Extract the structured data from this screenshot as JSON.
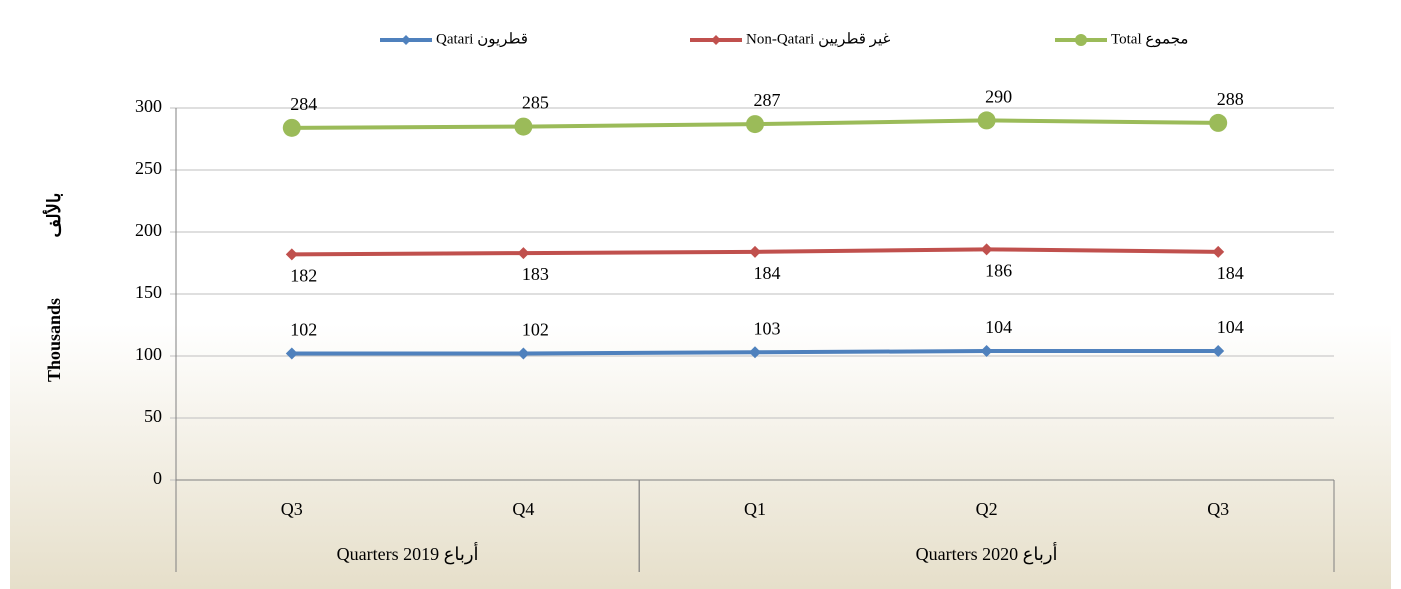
{
  "chart_data": {
    "type": "line",
    "categories": [
      "Q3",
      "Q4",
      "Q1",
      "Q2",
      "Q3"
    ],
    "groups": [
      {
        "label": "Quarters  2019  أرباع",
        "span": [
          0,
          2
        ]
      },
      {
        "label": "Quarters  2020  أرباع",
        "span": [
          2,
          5
        ]
      }
    ],
    "y_label": "Thousands",
    "y_label_ar": "بالألف",
    "series": [
      {
        "name": "Qatari قطريون",
        "color": "#4f81bd",
        "marker": "diamond",
        "label_position": "above",
        "values": [
          102,
          102,
          103,
          104,
          104
        ]
      },
      {
        "name": "Non-Qatari غير قطريين",
        "color": "#c0504d",
        "marker": "diamond",
        "label_position": "below",
        "values": [
          182,
          183,
          184,
          186,
          184
        ]
      },
      {
        "name": "Total مجموع",
        "color": "#9bbb59",
        "marker": "circle",
        "label_position": "above",
        "values": [
          284,
          285,
          287,
          290,
          288
        ]
      }
    ],
    "ylim": [
      0,
      300
    ],
    "yticks": [
      0,
      50,
      100,
      150,
      200,
      250,
      300
    ],
    "grid": true,
    "legend": "top"
  }
}
